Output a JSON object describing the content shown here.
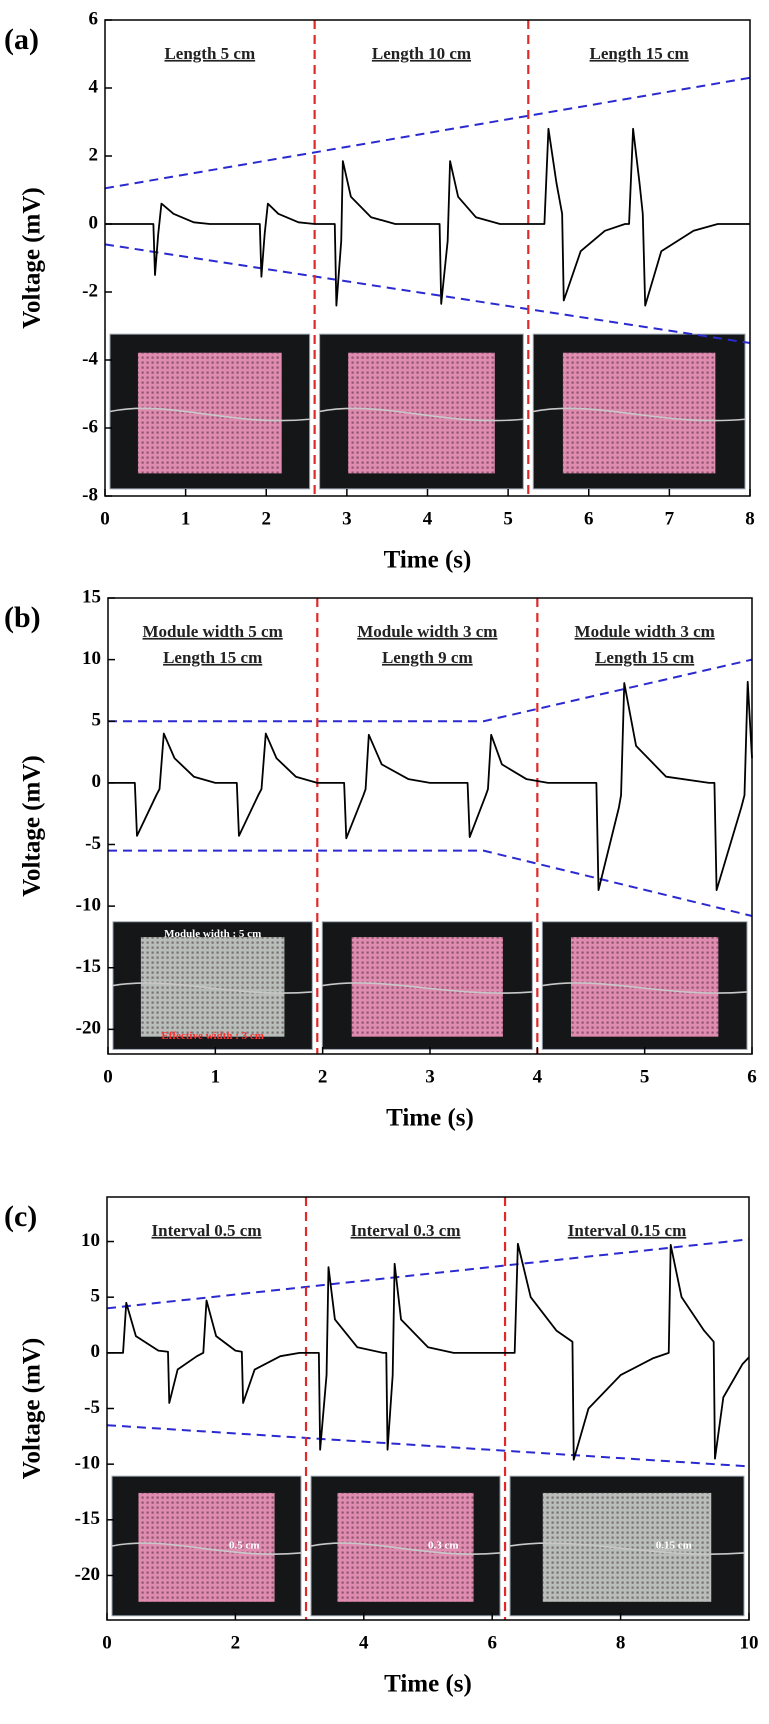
{
  "chart_data": [
    {
      "type": "line",
      "title": "(a)",
      "x_label": "Time (s)",
      "y_label": "Voltage (mV)",
      "xlim": [
        0,
        8
      ],
      "ylim": [
        -8,
        6
      ],
      "xticks": [
        0,
        1,
        2,
        3,
        4,
        5,
        6,
        7,
        8
      ],
      "yticks": [
        -8,
        -6,
        -4,
        -2,
        0,
        2,
        4,
        6
      ],
      "series": [
        {
          "color": "#000000",
          "x": [
            0,
            0.6,
            0.62,
            0.66,
            0.7,
            0.85,
            1.1,
            1.3,
            1.92,
            1.94,
            1.98,
            2.02,
            2.15,
            2.4,
            2.6,
            2.85,
            2.87,
            2.93,
            2.95,
            3.05,
            3.3,
            3.6,
            4.15,
            4.17,
            4.25,
            4.28,
            4.38,
            4.6,
            4.9,
            5.45,
            5.5,
            5.6,
            5.67,
            5.69,
            5.9,
            6.2,
            6.45,
            6.5,
            6.55,
            6.63,
            6.67,
            6.7,
            6.9,
            7.3,
            7.6,
            8
          ],
          "values": [
            0,
            0,
            -1.5,
            -0.3,
            0.6,
            0.3,
            0.05,
            0,
            0,
            -1.55,
            -0.3,
            0.6,
            0.3,
            0.05,
            0,
            0,
            -2.4,
            -0.5,
            1.85,
            0.8,
            0.2,
            0,
            0,
            -2.35,
            -0.5,
            1.85,
            0.8,
            0.2,
            0,
            0,
            2.8,
            1.2,
            0.3,
            -2.25,
            -0.8,
            -0.2,
            0,
            0,
            2.8,
            1.2,
            0.3,
            -2.4,
            -0.8,
            -0.2,
            0,
            0
          ]
        }
      ],
      "envelopes": [
        {
          "color": "#2a2ad0",
          "x": [
            0,
            8
          ],
          "values": [
            1.05,
            4.3
          ]
        },
        {
          "color": "#2a2ad0",
          "x": [
            0,
            8
          ],
          "values": [
            -0.6,
            -3.5
          ]
        }
      ],
      "dividers": {
        "color": "#e02a2a",
        "x": [
          2.6,
          5.25
        ]
      },
      "sections": [
        {
          "labels": [
            "Length 5 cm"
          ],
          "inset_color": "#e08cb0",
          "inset_labels": []
        },
        {
          "labels": [
            "Length 10 cm"
          ],
          "inset_color": "#e08cb0",
          "inset_labels": []
        },
        {
          "labels": [
            "Length 15 cm"
          ],
          "inset_color": "#e08cb0",
          "inset_labels": []
        }
      ]
    },
    {
      "type": "line",
      "title": "(b)",
      "x_label": "Time (s)",
      "y_label": "Voltage (mV)",
      "xlim": [
        0,
        6
      ],
      "ylim": [
        -22,
        15
      ],
      "xticks": [
        0,
        1,
        2,
        3,
        4,
        5,
        6
      ],
      "yticks": [
        -20,
        -15,
        -10,
        -5,
        0,
        5,
        10,
        15
      ],
      "series": [
        {
          "color": "#000000",
          "x": [
            0,
            0.25,
            0.27,
            0.45,
            0.48,
            0.52,
            0.62,
            0.8,
            1.0,
            1.2,
            1.22,
            1.4,
            1.43,
            1.47,
            1.57,
            1.75,
            1.95,
            2.2,
            2.22,
            2.38,
            2.4,
            2.43,
            2.55,
            2.8,
            3.0,
            3.35,
            3.37,
            3.52,
            3.54,
            3.57,
            3.67,
            3.9,
            4.1,
            4.55,
            4.57,
            4.76,
            4.78,
            4.81,
            4.92,
            5.2,
            5.6,
            5.65,
            5.67,
            5.9,
            5.93,
            5.96,
            6.0
          ],
          "values": [
            0,
            0,
            -4.3,
            -1,
            -0.5,
            4.0,
            2,
            0.5,
            0,
            0,
            -4.3,
            -1,
            -0.5,
            4.0,
            2,
            0.5,
            0,
            0,
            -4.5,
            -1,
            -0.5,
            3.9,
            1.5,
            0.3,
            0,
            0,
            -4.4,
            -1,
            -0.5,
            3.9,
            1.5,
            0.3,
            0,
            0,
            -8.7,
            -2,
            -1,
            8.1,
            3,
            0.5,
            0,
            0,
            -8.7,
            -2,
            -1,
            8.2,
            2
          ]
        }
      ],
      "envelopes": [
        {
          "color": "#2a2ad0",
          "x": [
            0,
            3.5,
            6
          ],
          "values": [
            5,
            5,
            10
          ]
        },
        {
          "color": "#2a2ad0",
          "x": [
            0,
            3.5,
            6
          ],
          "values": [
            -5.5,
            -5.5,
            -10.8
          ]
        }
      ],
      "dividers": {
        "color": "#e02a2a",
        "x": [
          1.95,
          4.0
        ]
      },
      "sections": [
        {
          "labels": [
            "Module width 5 cm",
            "Length 15 cm"
          ],
          "inset_color": "#b9beba",
          "inset_labels": [
            {
              "text": "Module width : 5 cm",
              "color": "#ffffff"
            },
            {
              "text": "Effective width : 3 cm",
              "color": "#ff3030"
            }
          ]
        },
        {
          "labels": [
            "Module width 3 cm",
            "Length 9 cm"
          ],
          "inset_color": "#e08cb0",
          "inset_labels": []
        },
        {
          "labels": [
            "Module width 3 cm",
            "Length 15 cm"
          ],
          "inset_color": "#e08cb0",
          "inset_labels": []
        }
      ]
    },
    {
      "type": "line",
      "title": "(c)",
      "x_label": "Time (s)",
      "y_label": "Voltage (mV)",
      "xlim": [
        0,
        10
      ],
      "ylim": [
        -24,
        14
      ],
      "xticks": [
        0,
        2,
        4,
        6,
        8,
        10
      ],
      "yticks": [
        -20,
        -15,
        -10,
        -5,
        0,
        5,
        10
      ],
      "series": [
        {
          "color": "#000000",
          "x": [
            0,
            0.25,
            0.3,
            0.45,
            0.8,
            0.95,
            0.97,
            1.1,
            1.4,
            1.5,
            1.55,
            1.7,
            2.0,
            2.1,
            2.12,
            2.3,
            2.7,
            3.0,
            3.3,
            3.32,
            3.42,
            3.45,
            3.55,
            3.9,
            4.3,
            4.35,
            4.37,
            4.45,
            4.48,
            4.58,
            5.0,
            5.4,
            6.35,
            6.4,
            6.6,
            7.0,
            7.25,
            7.27,
            7.5,
            8.0,
            8.5,
            8.75,
            8.78,
            8.95,
            9.3,
            9.45,
            9.47,
            9.6,
            9.9,
            10
          ],
          "values": [
            0,
            0,
            4.5,
            1.5,
            0.2,
            0.1,
            -4.5,
            -1.5,
            -0.3,
            0,
            4.7,
            1.5,
            0.2,
            0.1,
            -4.5,
            -1.5,
            -0.3,
            0,
            0,
            -8.7,
            -2,
            7.7,
            3,
            0.5,
            0,
            0,
            -8.7,
            -2,
            8,
            3,
            0.5,
            0,
            0,
            9.8,
            5,
            2,
            1,
            -9.6,
            -5,
            -2,
            -0.5,
            0,
            9.7,
            5,
            2,
            1,
            -9.5,
            -4,
            -1,
            -0.4
          ]
        }
      ],
      "envelopes": [
        {
          "color": "#2a2ad0",
          "x": [
            0,
            10
          ],
          "values": [
            4,
            10.2
          ]
        },
        {
          "color": "#2a2ad0",
          "x": [
            0,
            10
          ],
          "values": [
            -6.5,
            -10.2
          ]
        }
      ],
      "dividers": {
        "color": "#e02a2a",
        "x": [
          3.1,
          6.2
        ]
      },
      "sections": [
        {
          "labels": [
            "Interval 0.5 cm"
          ],
          "inset_color": "#e08cb0",
          "inset_labels": [
            {
              "text": "0.5 cm",
              "color": "#ffffff"
            }
          ]
        },
        {
          "labels": [
            "Interval 0.3 cm"
          ],
          "inset_color": "#e08cb0",
          "inset_labels": [
            {
              "text": "0.3 cm",
              "color": "#ffffff"
            }
          ]
        },
        {
          "labels": [
            "Interval 0.15 cm"
          ],
          "inset_color": "#b9beba",
          "inset_labels": [
            {
              "text": "0.15 cm",
              "color": "#ffffff"
            }
          ]
        }
      ]
    }
  ]
}
